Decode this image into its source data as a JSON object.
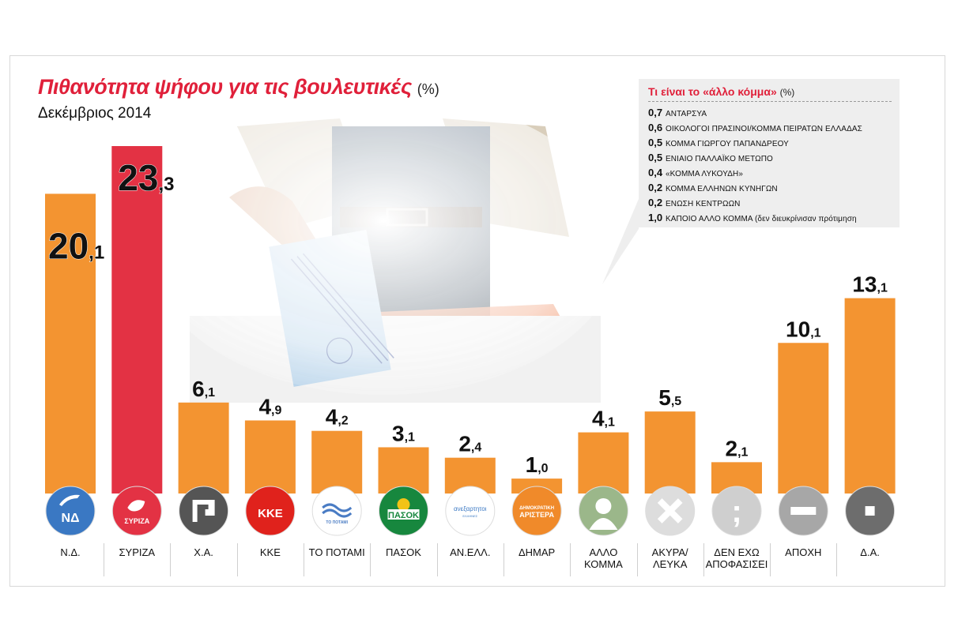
{
  "title": "Πιθανότητα ψήφου για τις βουλευτικές",
  "title_unit": "(%)",
  "subtitle": "Δεκέμβριος 2014",
  "chart_data": {
    "type": "bar",
    "title": "Πιθανότητα ψήφου για τις βουλευτικές (%)",
    "subtitle": "Δεκέμβριος 2014",
    "categories": [
      "Ν.Δ.",
      "ΣΥΡΙΖΑ",
      "Χ.Α.",
      "ΚΚΕ",
      "ΤΟ ΠΟΤΑΜΙ",
      "ΠΑΣΟΚ",
      "ΑΝ.ΕΛΛ.",
      "ΔΗΜΑΡ",
      "ΑΛΛΟ ΚΟΜΜΑ",
      "ΑΚΥΡΑ/ ΛΕΥΚΑ",
      "ΔΕΝ ΕΧΩ ΑΠΟΦΑΣΙΣΕΙ",
      "ΑΠΟΧΗ",
      "Δ.Α."
    ],
    "values": [
      20.1,
      23.3,
      6.1,
      4.9,
      4.2,
      3.1,
      2.4,
      1.0,
      4.1,
      5.5,
      2.1,
      10.1,
      13.1
    ],
    "value_labels": [
      {
        "int": "20",
        "dec": ",1"
      },
      {
        "int": "23",
        "dec": ",3"
      },
      {
        "int": "6",
        "dec": ",1"
      },
      {
        "int": "4",
        "dec": ",9"
      },
      {
        "int": "4",
        "dec": ",2"
      },
      {
        "int": "3",
        "dec": ",1"
      },
      {
        "int": "2",
        "dec": ",4"
      },
      {
        "int": "1",
        "dec": ",0"
      },
      {
        "int": "4",
        "dec": ",1"
      },
      {
        "int": "5",
        "dec": ",5"
      },
      {
        "int": "2",
        "dec": ",1"
      },
      {
        "int": "10",
        "dec": ",1"
      },
      {
        "int": "13",
        "dec": ",1"
      }
    ],
    "bar_colors": [
      "#f39431",
      "#e33244",
      "#f39431",
      "#f39431",
      "#f39431",
      "#f39431",
      "#f39431",
      "#f39431",
      "#f39431",
      "#f39431",
      "#f39431",
      "#f39431",
      "#f39431"
    ],
    "icons": [
      {
        "name": "nd-logo-icon",
        "bg": "#3a78c3",
        "text": "ΝΔ"
      },
      {
        "name": "syriza-logo-icon",
        "bg": "#e33244",
        "text": "ΣΥΡΙΖΑ"
      },
      {
        "name": "meander-icon",
        "bg": "#555555",
        "text": ""
      },
      {
        "name": "kke-logo-icon",
        "bg": "#e0221c",
        "text": "ΚΚΕ"
      },
      {
        "name": "potami-logo-icon",
        "bg": "#ffffff",
        "text": "ΤΟ ΠΟΤΑΜΙ"
      },
      {
        "name": "pasok-logo-icon",
        "bg": "#17873e",
        "text": "ΠΑΣΟΚ"
      },
      {
        "name": "anel-logo-icon",
        "bg": "#ffffff",
        "text": "ανεξαρτητοι"
      },
      {
        "name": "dimar-logo-icon",
        "bg": "#f08a2a",
        "text": "ΔΗΜΟΚΡΑΤΙΚΗ ΑΡΙΣΤΕΡΑ"
      },
      {
        "name": "person-silhouette-icon",
        "bg": "#9bb78a",
        "text": ""
      },
      {
        "name": "x-cross-icon",
        "bg": "#dddddd",
        "text": ""
      },
      {
        "name": "semicolon-icon",
        "bg": "#cfcfcf",
        "text": ";"
      },
      {
        "name": "minus-icon",
        "bg": "#a7a7a7",
        "text": ""
      },
      {
        "name": "dot-icon",
        "bg": "#6d6d6d",
        "text": ""
      }
    ],
    "ylim": [
      0,
      23.3
    ],
    "grid": false
  },
  "legend": {
    "title": "Τι είναι το «άλλο κόμμα»",
    "title_unit": "(%)",
    "items": [
      {
        "value": "0,7",
        "name": "ΑΝΤΑΡΣΥΑ"
      },
      {
        "value": "0,6",
        "name": "ΟΙΚΟΛΟΓΟΙ ΠΡΑΣΙΝΟΙ/ΚΟΜΜΑ ΠΕΙΡΑΤΩΝ ΕΛΛΑΔΑΣ"
      },
      {
        "value": "0,5",
        "name": "ΚΟΜΜΑ ΓΙΩΡΓΟΥ ΠΑΠΑΝΔΡΕΟΥ"
      },
      {
        "value": "0,5",
        "name": "ΕΝΙΑΙΟ ΠΑΛΛΑΪΚΟ ΜΕΤΩΠΟ"
      },
      {
        "value": "0,4",
        "name": "«ΚΟΜΜΑ ΛΥΚΟΥΔΗ»"
      },
      {
        "value": "0,2",
        "name": "ΚΟΜΜΑ ΕΛΛΗΝΩΝ ΚΥΝΗΓΩΝ"
      },
      {
        "value": "0,2",
        "name": "ΕΝΩΣΗ ΚΕΝΤΡΩΩΝ"
      },
      {
        "value": "1,0",
        "name": "ΚΑΠΟΙΟ ΑΛΛΟ ΚΟΜΜΑ (δεν διευκρίνισαν πρότιμηση"
      }
    ]
  }
}
